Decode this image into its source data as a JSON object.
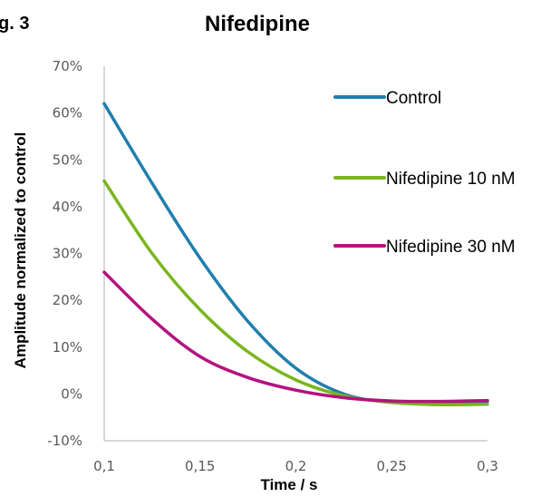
{
  "figure_label": "g. 3",
  "chart_data": {
    "type": "line",
    "title": "Nifedipine",
    "xlabel": "Time / s",
    "ylabel": "Amplitude normalized to control",
    "x_ticks": [
      "0,1",
      "0,15",
      "0,2",
      "0,25",
      "0,3"
    ],
    "y_ticks": [
      "70%",
      "60%",
      "50%",
      "40%",
      "30%",
      "20%",
      "10%",
      "0%",
      "-10%"
    ],
    "xlim": [
      0.1,
      0.3
    ],
    "ylim": [
      -10,
      70
    ],
    "grid": false,
    "legend_position": "right",
    "series": [
      {
        "name": "Control",
        "color": "#1f7fad",
        "x": [
          0.1,
          0.125,
          0.15,
          0.175,
          0.2,
          0.225,
          0.25,
          0.275,
          0.3
        ],
        "y": [
          62,
          45,
          29,
          15.5,
          5.5,
          0,
          -1.8,
          -2,
          -1.6
        ]
      },
      {
        "name": "Nifedipine 10 nM",
        "color": "#7ab51d",
        "x": [
          0.1,
          0.125,
          0.15,
          0.175,
          0.2,
          0.225,
          0.25,
          0.275,
          0.3
        ],
        "y": [
          45.5,
          30,
          18,
          9,
          3,
          -0.4,
          -1.8,
          -2.3,
          -2.2
        ]
      },
      {
        "name": "Nifedipine 30 nM",
        "color": "#b3127f",
        "x": [
          0.1,
          0.125,
          0.15,
          0.175,
          0.2,
          0.225,
          0.25,
          0.275,
          0.3
        ],
        "y": [
          26,
          16,
          8,
          3.5,
          0.8,
          -0.8,
          -1.5,
          -1.6,
          -1.4
        ]
      }
    ]
  }
}
